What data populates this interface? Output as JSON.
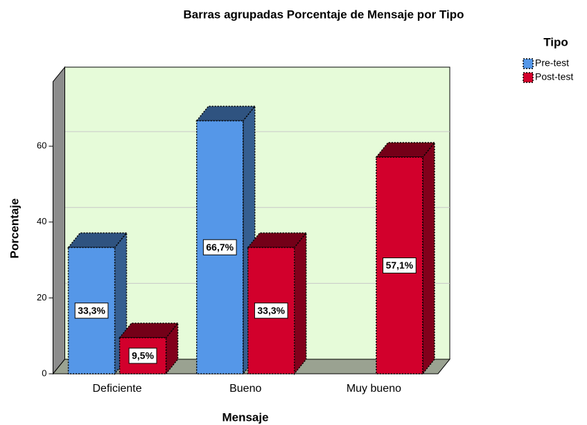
{
  "chart_data": {
    "type": "bar",
    "title": "Barras agrupadas Porcentaje de Mensaje por Tipo",
    "x_label": "Mensaje",
    "y_label": "Porcentaje",
    "legend_title": "Tipo",
    "legend": "top-right",
    "categories": [
      "Deficiente",
      "Bueno",
      "Muy bueno"
    ],
    "series": [
      {
        "name": "Pre-test",
        "color": "#5597e8",
        "values": [
          33.3,
          66.7,
          null
        ],
        "value_labels": [
          "33,3%",
          "66,7%",
          null
        ]
      },
      {
        "name": "Post-test",
        "color": "#d2002c",
        "values": [
          9.5,
          33.3,
          57.1
        ],
        "value_labels": [
          "9,5%",
          "33,3%",
          "57,1%"
        ]
      }
    ],
    "ylim": [
      0,
      77
    ],
    "yticks": [
      0,
      20,
      40,
      60
    ],
    "grid": true
  }
}
